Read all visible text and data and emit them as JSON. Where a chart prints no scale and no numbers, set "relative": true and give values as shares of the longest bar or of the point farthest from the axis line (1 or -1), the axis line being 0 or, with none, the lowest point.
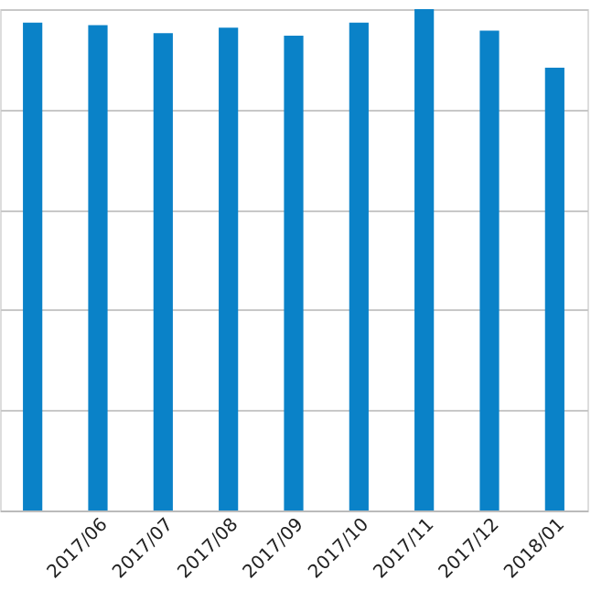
{
  "chart_data": {
    "type": "bar",
    "relative": true,
    "categories": [
      null,
      "2017/06",
      "2017/07",
      "2017/08",
      "2017/09",
      "2017/10",
      "2017/11",
      "2017/12",
      "2018/01"
    ],
    "values": [
      0.973,
      0.968,
      0.952,
      0.963,
      0.947,
      0.973,
      1,
      0.957,
      0.883
    ],
    "color": "#0a82c8",
    "grid": "y"
  }
}
